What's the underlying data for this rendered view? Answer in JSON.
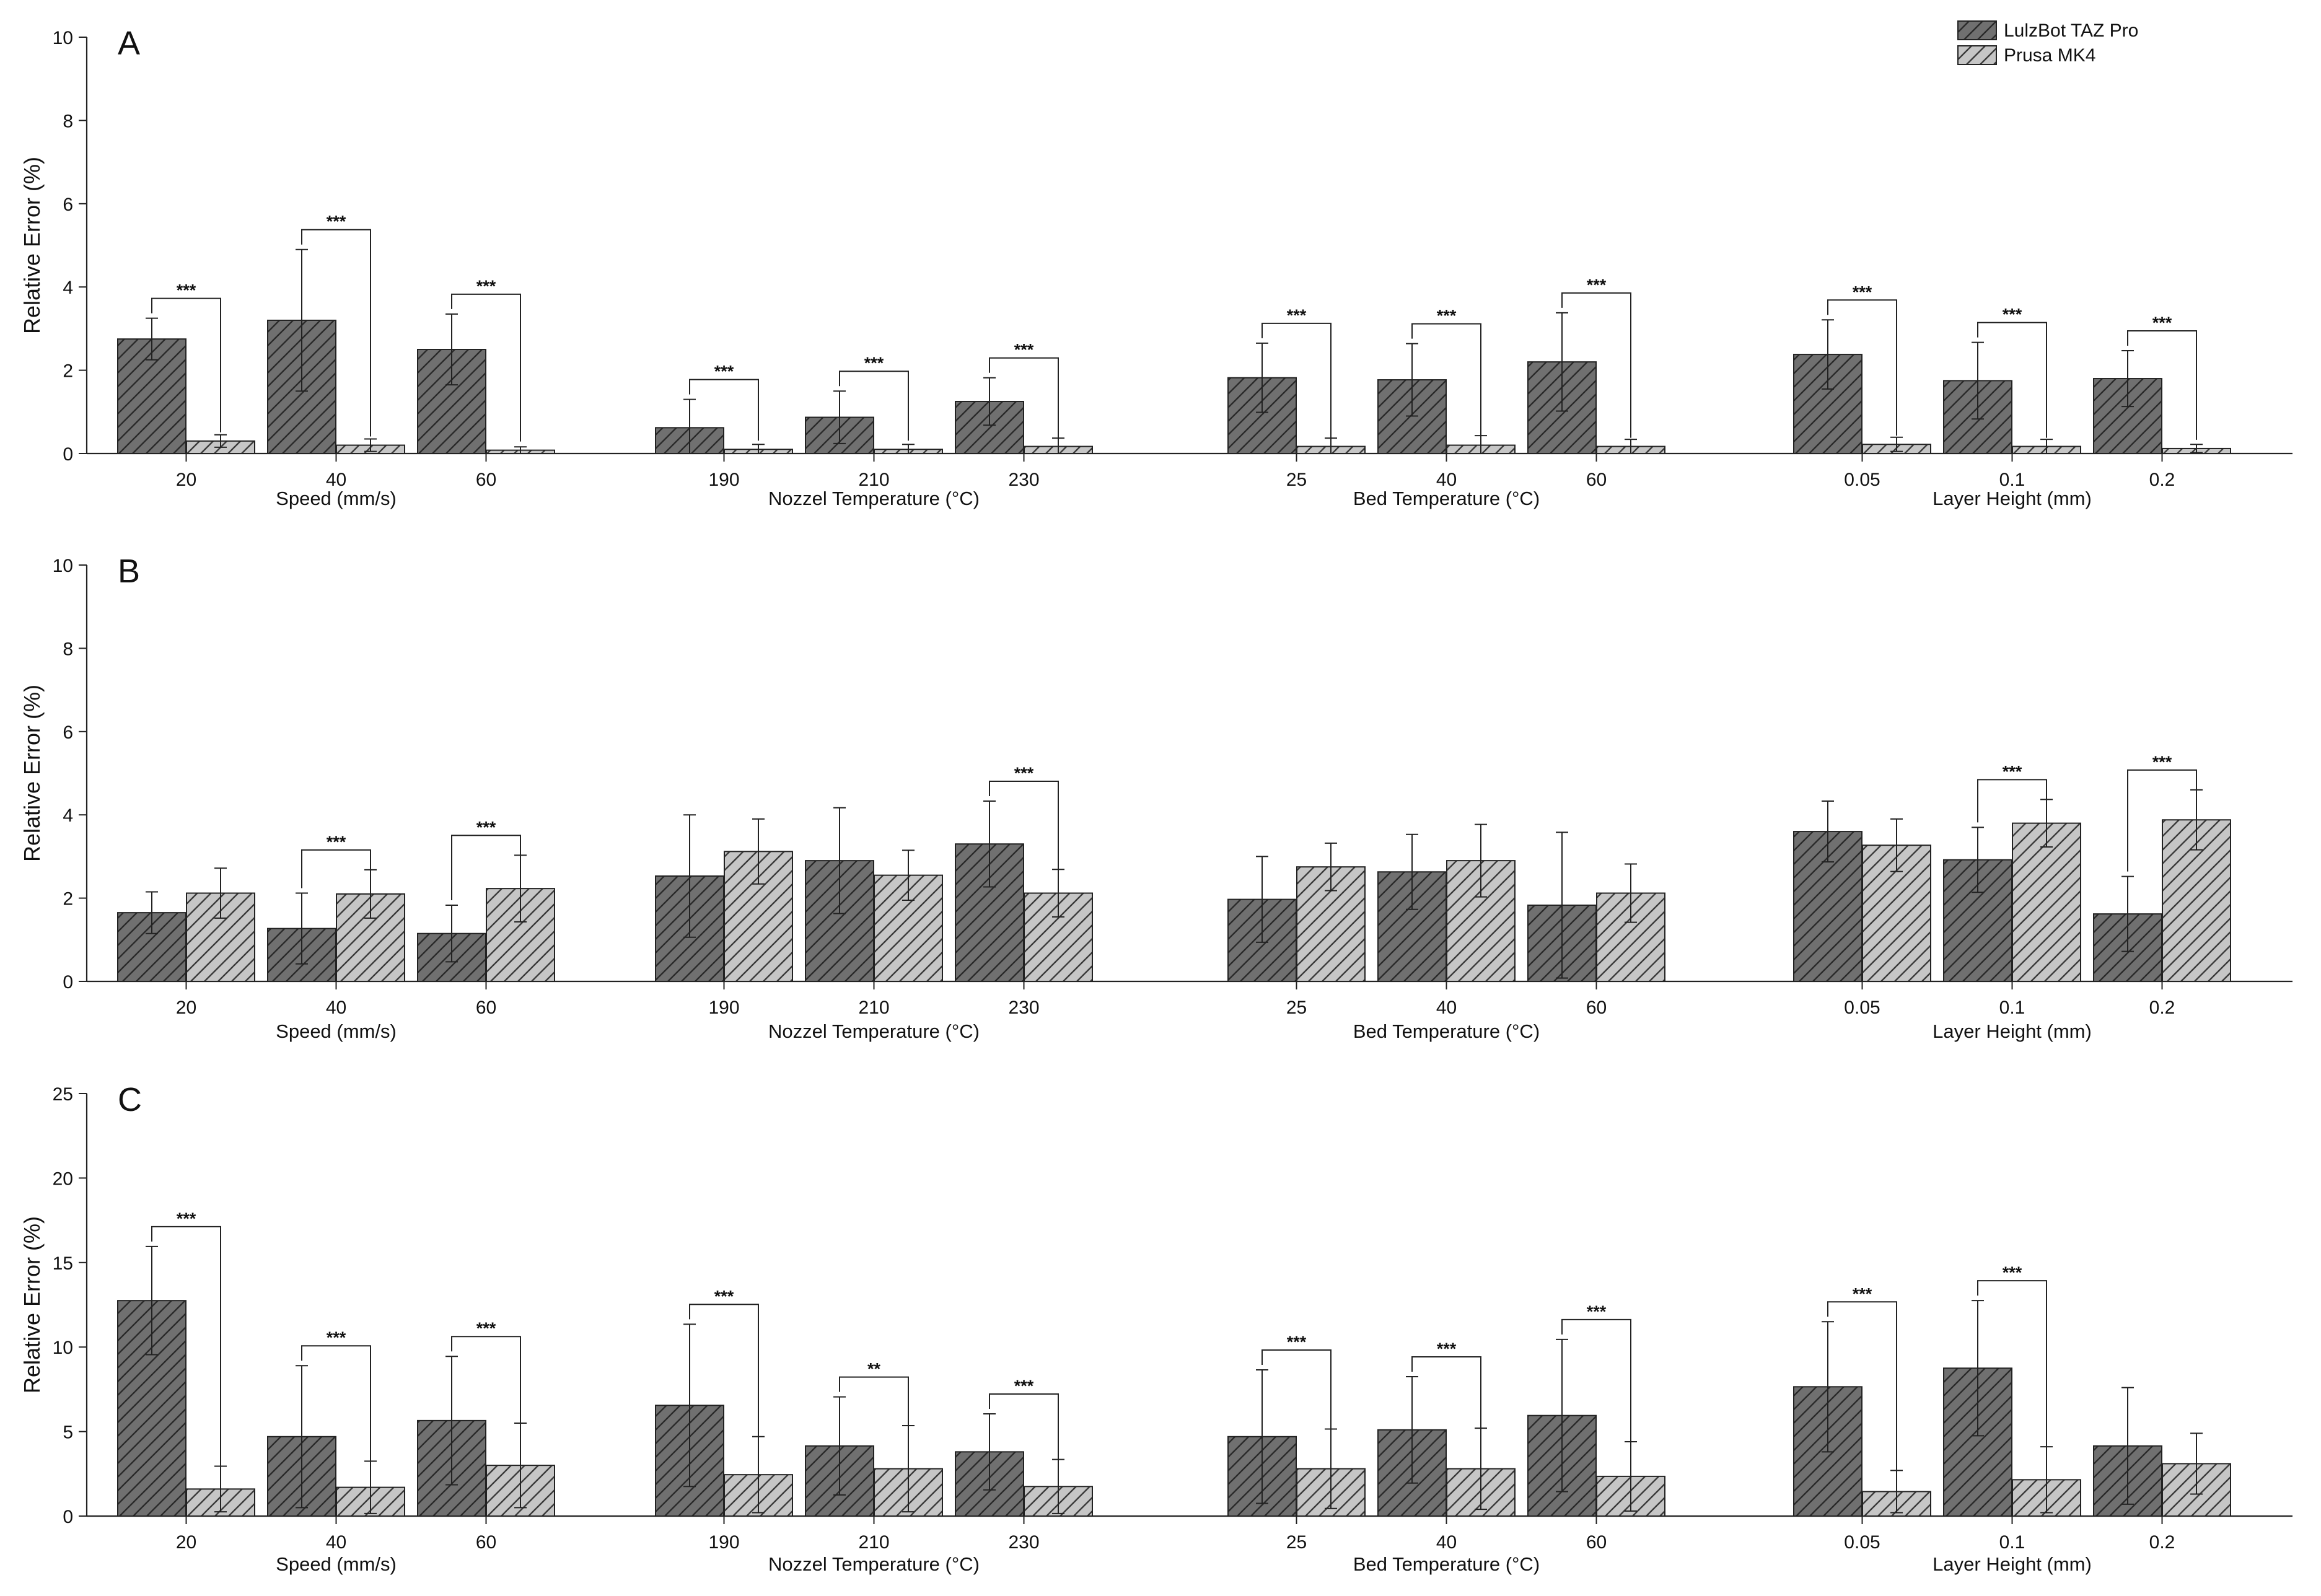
{
  "chart_data": {
    "type": "bar",
    "legend": {
      "placement": "top-right",
      "series": [
        {
          "name": "LulzBot TAZ Pro",
          "color": "#707070",
          "hatch": "#2a2a2a"
        },
        {
          "name": "Prusa MK4",
          "color": "#c6c6c6",
          "hatch": "#3a3a3a"
        }
      ]
    },
    "panels": [
      {
        "letter": "A",
        "ylabel": "Relative Error (%)",
        "ylim": [
          0,
          10
        ],
        "yticks": [
          "0",
          "2",
          "4",
          "6",
          "8",
          "10"
        ],
        "groups": [
          {
            "label": "Speed (mm/s)",
            "categories": [
              {
                "label": "20",
                "taz": 2.75,
                "taz_err": 0.5,
                "prusa": 0.3,
                "prusa_err": 0.15,
                "sig": "***"
              },
              {
                "label": "40",
                "taz": 3.2,
                "taz_err": 1.7,
                "prusa": 0.2,
                "prusa_err": 0.15,
                "sig": "***"
              },
              {
                "label": "60",
                "taz": 2.5,
                "taz_err": 0.85,
                "prusa": 0.08,
                "prusa_err": 0.08,
                "sig": "***"
              }
            ]
          },
          {
            "label": "Nozzel Temperature (°C)",
            "categories": [
              {
                "label": "190",
                "taz": 0.62,
                "taz_err": 0.68,
                "prusa": 0.1,
                "prusa_err": 0.12,
                "sig": "***"
              },
              {
                "label": "210",
                "taz": 0.87,
                "taz_err": 0.63,
                "prusa": 0.1,
                "prusa_err": 0.12,
                "sig": "***"
              },
              {
                "label": "230",
                "taz": 1.25,
                "taz_err": 0.57,
                "prusa": 0.17,
                "prusa_err": 0.2,
                "sig": "***"
              }
            ]
          },
          {
            "label": "Bed Temperature (°C)",
            "categories": [
              {
                "label": "25",
                "taz": 1.82,
                "taz_err": 0.83,
                "prusa": 0.17,
                "prusa_err": 0.2,
                "sig": "***"
              },
              {
                "label": "40",
                "taz": 1.77,
                "taz_err": 0.87,
                "prusa": 0.2,
                "prusa_err": 0.23,
                "sig": "***"
              },
              {
                "label": "60",
                "taz": 2.2,
                "taz_err": 1.18,
                "prusa": 0.17,
                "prusa_err": 0.17,
                "sig": "***"
              }
            ]
          },
          {
            "label": "Layer Height (mm)",
            "categories": [
              {
                "label": "0.05",
                "taz": 2.38,
                "taz_err": 0.83,
                "prusa": 0.22,
                "prusa_err": 0.17,
                "sig": "***"
              },
              {
                "label": "0.1",
                "taz": 1.75,
                "taz_err": 0.92,
                "prusa": 0.17,
                "prusa_err": 0.17,
                "sig": "***"
              },
              {
                "label": "0.2",
                "taz": 1.8,
                "taz_err": 0.67,
                "prusa": 0.12,
                "prusa_err": 0.1,
                "sig": "***"
              }
            ]
          }
        ]
      },
      {
        "letter": "B",
        "ylabel": "Relative Error (%)",
        "ylim": [
          0,
          10
        ],
        "yticks": [
          "0",
          "2",
          "4",
          "6",
          "8",
          "10"
        ],
        "groups": [
          {
            "label": "Speed (mm/s)",
            "categories": [
              {
                "label": "20",
                "taz": 1.65,
                "taz_err": 0.5,
                "prusa": 2.12,
                "prusa_err": 0.6,
                "sig": ""
              },
              {
                "label": "40",
                "taz": 1.27,
                "taz_err": 0.85,
                "prusa": 2.1,
                "prusa_err": 0.58,
                "sig": "***"
              },
              {
                "label": "60",
                "taz": 1.15,
                "taz_err": 0.68,
                "prusa": 2.23,
                "prusa_err": 0.8,
                "sig": "***"
              }
            ]
          },
          {
            "label": "Nozzel Temperature (°C)",
            "categories": [
              {
                "label": "190",
                "taz": 2.53,
                "taz_err": 1.47,
                "prusa": 3.12,
                "prusa_err": 0.78,
                "sig": ""
              },
              {
                "label": "210",
                "taz": 2.9,
                "taz_err": 1.27,
                "prusa": 2.55,
                "prusa_err": 0.6,
                "sig": ""
              },
              {
                "label": "230",
                "taz": 3.3,
                "taz_err": 1.03,
                "prusa": 2.12,
                "prusa_err": 0.57,
                "sig": "***"
              }
            ]
          },
          {
            "label": "Bed Temperature (°C)",
            "categories": [
              {
                "label": "25",
                "taz": 1.97,
                "taz_err": 1.03,
                "prusa": 2.75,
                "prusa_err": 0.57,
                "sig": ""
              },
              {
                "label": "40",
                "taz": 2.63,
                "taz_err": 0.9,
                "prusa": 2.9,
                "prusa_err": 0.87,
                "sig": ""
              },
              {
                "label": "60",
                "taz": 1.83,
                "taz_err": 1.75,
                "prusa": 2.12,
                "prusa_err": 0.7,
                "sig": ""
              }
            ]
          },
          {
            "label": "Layer Height (mm)",
            "categories": [
              {
                "label": "0.05",
                "taz": 3.6,
                "taz_err": 0.73,
                "prusa": 3.27,
                "prusa_err": 0.63,
                "sig": ""
              },
              {
                "label": "0.1",
                "taz": 2.92,
                "taz_err": 0.78,
                "prusa": 3.8,
                "prusa_err": 0.57,
                "sig": "***"
              },
              {
                "label": "0.2",
                "taz": 1.62,
                "taz_err": 0.9,
                "prusa": 3.88,
                "prusa_err": 0.72,
                "sig": "***"
              }
            ]
          }
        ]
      },
      {
        "letter": "C",
        "ylabel": "Relative Error (%)",
        "ylim": [
          0,
          25
        ],
        "yticks": [
          "0",
          "5",
          "10",
          "15",
          "20",
          "25"
        ],
        "groups": [
          {
            "label": "Speed (mm/s)",
            "categories": [
              {
                "label": "20",
                "taz": 12.75,
                "taz_err": 3.2,
                "prusa": 1.6,
                "prusa_err": 1.35,
                "sig": "***"
              },
              {
                "label": "40",
                "taz": 4.7,
                "taz_err": 4.2,
                "prusa": 1.7,
                "prusa_err": 1.55,
                "sig": "***"
              },
              {
                "label": "60",
                "taz": 5.65,
                "taz_err": 3.8,
                "prusa": 3.0,
                "prusa_err": 2.5,
                "sig": "***"
              }
            ]
          },
          {
            "label": "Nozzel Temperature (°C)",
            "categories": [
              {
                "label": "190",
                "taz": 6.55,
                "taz_err": 4.8,
                "prusa": 2.45,
                "prusa_err": 2.25,
                "sig": "***"
              },
              {
                "label": "210",
                "taz": 4.15,
                "taz_err": 2.9,
                "prusa": 2.8,
                "prusa_err": 2.55,
                "sig": "**"
              },
              {
                "label": "230",
                "taz": 3.8,
                "taz_err": 2.25,
                "prusa": 1.75,
                "prusa_err": 1.6,
                "sig": "***"
              }
            ]
          },
          {
            "label": "Bed Temperature (°C)",
            "categories": [
              {
                "label": "25",
                "taz": 4.7,
                "taz_err": 3.95,
                "prusa": 2.8,
                "prusa_err": 2.35,
                "sig": "***"
              },
              {
                "label": "40",
                "taz": 5.1,
                "taz_err": 3.15,
                "prusa": 2.8,
                "prusa_err": 2.4,
                "sig": "***"
              },
              {
                "label": "60",
                "taz": 5.95,
                "taz_err": 4.5,
                "prusa": 2.35,
                "prusa_err": 2.05,
                "sig": "***"
              }
            ]
          },
          {
            "label": "Layer Height (mm)",
            "categories": [
              {
                "label": "0.05",
                "taz": 7.65,
                "taz_err": 3.85,
                "prusa": 1.45,
                "prusa_err": 1.25,
                "sig": "***"
              },
              {
                "label": "0.1",
                "taz": 8.75,
                "taz_err": 4.0,
                "prusa": 2.15,
                "prusa_err": 1.95,
                "sig": "***"
              },
              {
                "label": "0.2",
                "taz": 4.15,
                "taz_err": 3.45,
                "prusa": 3.1,
                "prusa_err": 1.8,
                "sig": ""
              }
            ]
          }
        ]
      }
    ]
  }
}
